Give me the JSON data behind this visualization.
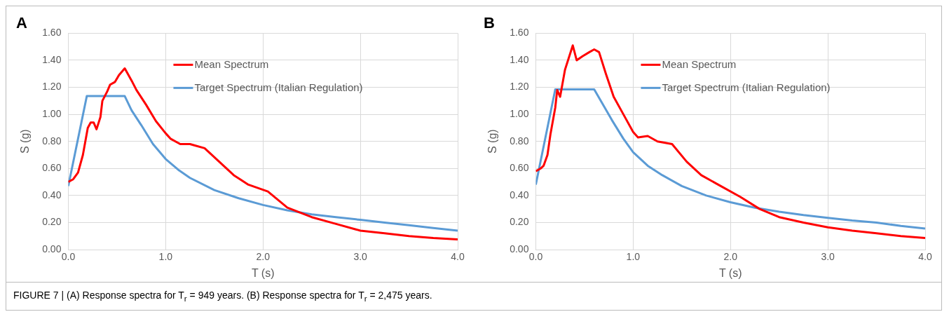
{
  "chart_data": [
    {
      "type": "line",
      "title": "A",
      "xlabel": "T (s)",
      "ylabel": "S (g)",
      "xlim": [
        0,
        4
      ],
      "xticks": [
        {
          "value": 0,
          "label": "0.0"
        },
        {
          "value": 1,
          "label": "1.0"
        },
        {
          "value": 2,
          "label": "2.0"
        },
        {
          "value": 3,
          "label": "3.0"
        },
        {
          "value": 4,
          "label": "4.0"
        }
      ],
      "ylim": [
        0,
        1.6
      ],
      "yticks": [
        {
          "value": 0,
          "label": "0.00"
        },
        {
          "value": 0.2,
          "label": "0.20"
        },
        {
          "value": 0.4,
          "label": "0.40"
        },
        {
          "value": 0.6,
          "label": "0.60"
        },
        {
          "value": 0.8,
          "label": "0.80"
        },
        {
          "value": 1,
          "label": "1.00"
        },
        {
          "value": 1.2,
          "label": "1.20"
        },
        {
          "value": 1.4,
          "label": "1.40"
        },
        {
          "value": 1.6,
          "label": "1.60"
        }
      ],
      "grid": true,
      "legend": "top",
      "marker": "none",
      "line_style": "solid",
      "series": [
        {
          "name": "Mean Spectrum",
          "color": "#ff0000",
          "x": [
            0,
            0.05,
            0.1,
            0.15,
            0.2,
            0.23,
            0.26,
            0.29,
            0.33,
            0.35,
            0.4,
            0.43,
            0.48,
            0.52,
            0.58,
            0.65,
            0.7,
            0.8,
            0.9,
            1.0,
            1.05,
            1.15,
            1.25,
            1.3,
            1.4,
            1.55,
            1.7,
            1.85,
            2.05,
            2.25,
            2.5,
            2.75,
            3.0,
            3.25,
            3.5,
            3.75,
            4.0
          ],
          "values": [
            0.5,
            0.52,
            0.57,
            0.7,
            0.9,
            0.94,
            0.94,
            0.89,
            0.98,
            1.1,
            1.17,
            1.22,
            1.24,
            1.29,
            1.34,
            1.25,
            1.18,
            1.07,
            0.95,
            0.86,
            0.82,
            0.78,
            0.78,
            0.77,
            0.75,
            0.65,
            0.55,
            0.48,
            0.43,
            0.31,
            0.24,
            0.19,
            0.14,
            0.12,
            0.1,
            0.085,
            0.075
          ]
        },
        {
          "name": "Target Spectrum (Italian Regulation)",
          "color": "#5b9bd5",
          "x": [
            0,
            0.19,
            0.58,
            0.65,
            0.75,
            0.87,
            1.0,
            1.13,
            1.25,
            1.5,
            1.75,
            2.0,
            2.25,
            2.5,
            2.75,
            3.0,
            3.25,
            3.5,
            3.75,
            4.0
          ],
          "values": [
            0.47,
            1.135,
            1.135,
            1.03,
            0.92,
            0.78,
            0.67,
            0.59,
            0.53,
            0.44,
            0.38,
            0.33,
            0.29,
            0.26,
            0.24,
            0.22,
            0.2,
            0.18,
            0.16,
            0.14
          ]
        }
      ],
      "annotations": [
        "FIGURE 7 | (A) Response spectra for T$_{r}$ = 949 years. (B) Response spectra for T$_{r}$ = 2,475 years."
      ]
    },
    {
      "type": "line",
      "title": "B",
      "xlabel": "T (s)",
      "ylabel": "S (g)",
      "xlim": [
        0,
        4
      ],
      "xticks": [
        {
          "value": 0,
          "label": "0.0"
        },
        {
          "value": 1,
          "label": "1.0"
        },
        {
          "value": 2,
          "label": "2.0"
        },
        {
          "value": 3,
          "label": "3.0"
        },
        {
          "value": 4,
          "label": "4.0"
        }
      ],
      "ylim": [
        0,
        1.6
      ],
      "yticks": [
        {
          "value": 0,
          "label": "0.00"
        },
        {
          "value": 0.2,
          "label": "0.20"
        },
        {
          "value": 0.4,
          "label": "0.40"
        },
        {
          "value": 0.6,
          "label": "0.60"
        },
        {
          "value": 0.8,
          "label": "0.80"
        },
        {
          "value": 1,
          "label": "1.00"
        },
        {
          "value": 1.2,
          "label": "1.20"
        },
        {
          "value": 1.4,
          "label": "1.40"
        },
        {
          "value": 1.6,
          "label": "1.60"
        }
      ],
      "grid": true,
      "legend": "top",
      "marker": "none",
      "line_style": "solid",
      "series": [
        {
          "name": "Mean Spectrum",
          "color": "#ff0000",
          "x": [
            0,
            0.05,
            0.08,
            0.12,
            0.15,
            0.2,
            0.22,
            0.25,
            0.3,
            0.38,
            0.42,
            0.48,
            0.55,
            0.6,
            0.65,
            0.72,
            0.8,
            0.9,
            1.0,
            1.05,
            1.15,
            1.25,
            1.4,
            1.55,
            1.7,
            1.9,
            2.1,
            2.3,
            2.5,
            2.75,
            3.0,
            3.25,
            3.5,
            3.75,
            4.0
          ],
          "values": [
            0.58,
            0.6,
            0.62,
            0.7,
            0.85,
            1.05,
            1.18,
            1.13,
            1.33,
            1.51,
            1.4,
            1.43,
            1.46,
            1.48,
            1.46,
            1.3,
            1.13,
            1.0,
            0.87,
            0.83,
            0.84,
            0.8,
            0.78,
            0.65,
            0.55,
            0.47,
            0.39,
            0.3,
            0.24,
            0.2,
            0.165,
            0.14,
            0.12,
            0.1,
            0.085
          ]
        },
        {
          "name": "Target Spectrum (Italian Regulation)",
          "color": "#5b9bd5",
          "x": [
            0,
            0.2,
            0.6,
            0.7,
            0.78,
            0.9,
            1.0,
            1.15,
            1.3,
            1.5,
            1.75,
            2.0,
            2.25,
            2.5,
            2.75,
            3.0,
            3.25,
            3.5,
            3.75,
            4.0
          ],
          "values": [
            0.48,
            1.185,
            1.185,
            1.06,
            0.96,
            0.82,
            0.72,
            0.62,
            0.55,
            0.47,
            0.4,
            0.35,
            0.31,
            0.28,
            0.255,
            0.235,
            0.215,
            0.2,
            0.175,
            0.155
          ]
        }
      ]
    }
  ]
}
